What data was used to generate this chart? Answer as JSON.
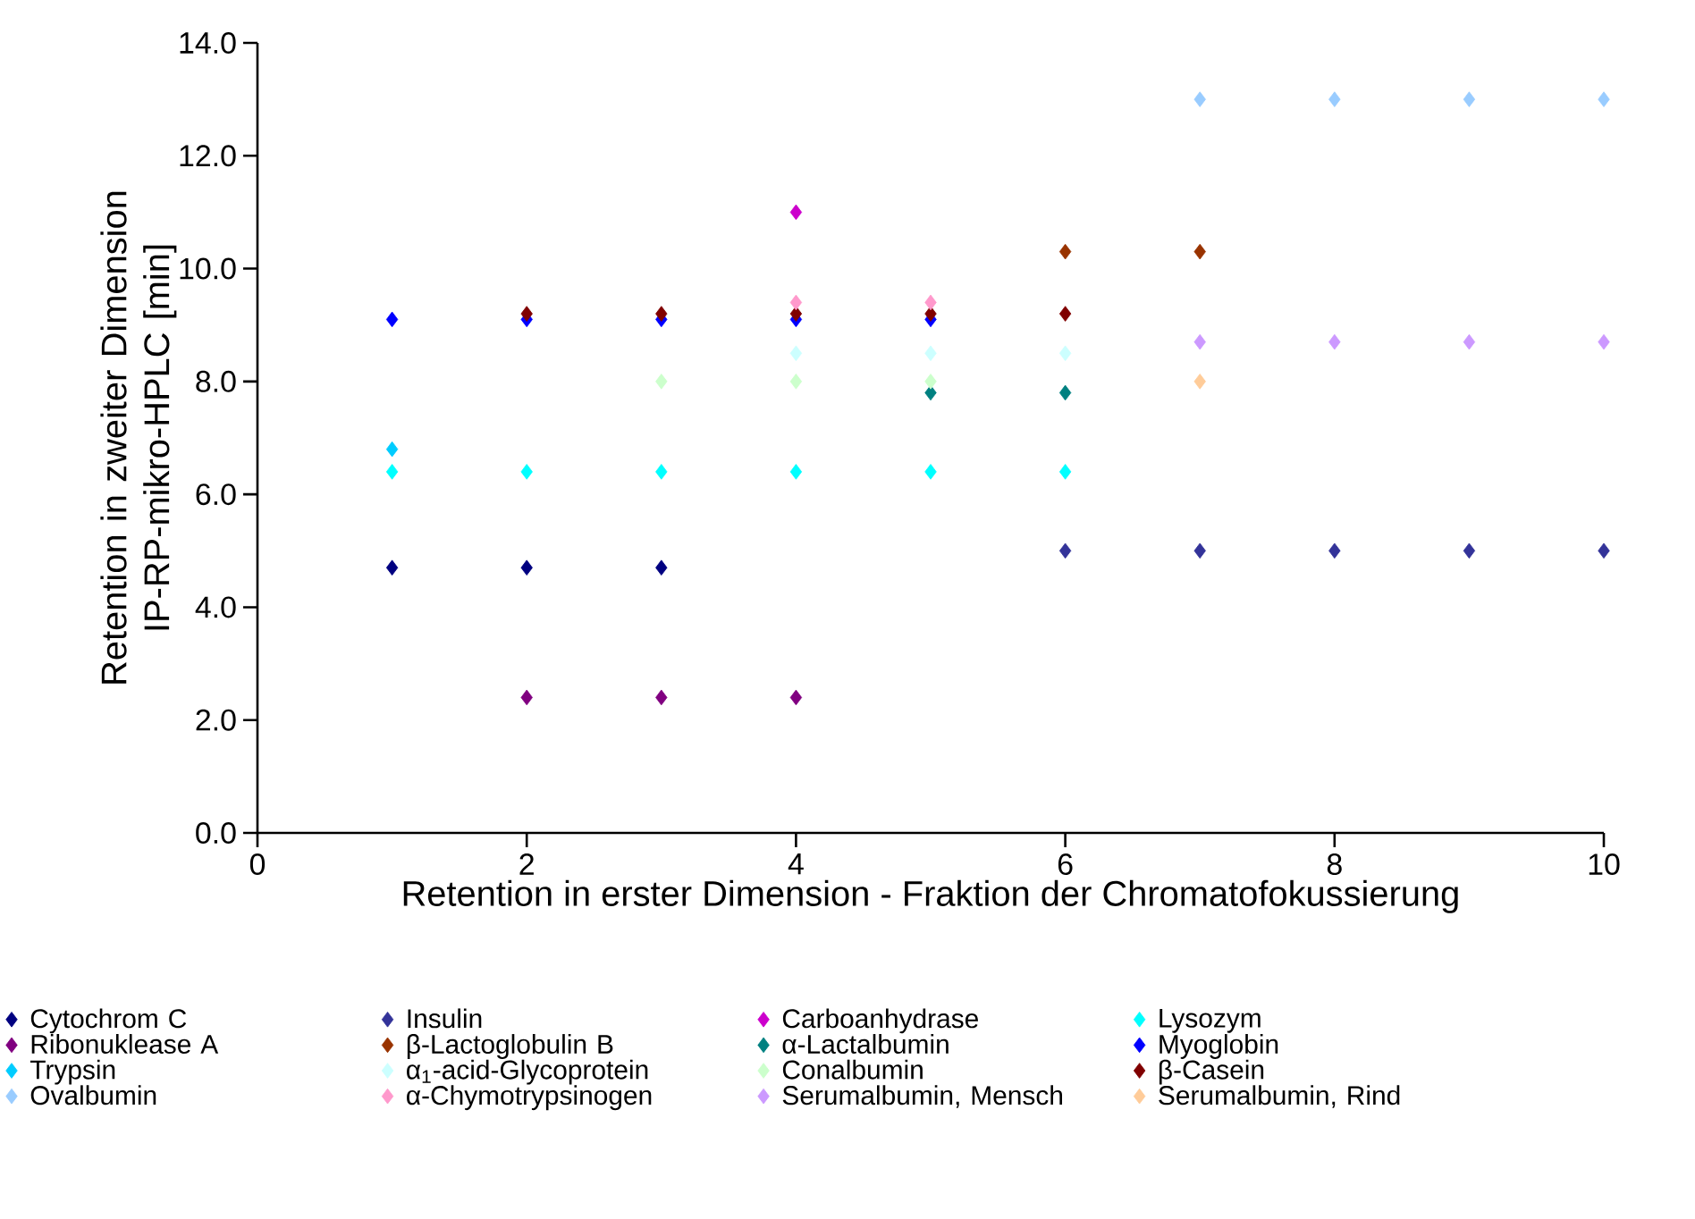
{
  "chart_data": {
    "type": "scatter",
    "xlabel": "Retention in erster Dimension - Fraktion der Chromatofokussierung",
    "ylabel": "Retention in zweiter Dimension IP-RP-mikro-HPLC [min]",
    "xlim": [
      0,
      10
    ],
    "ylim": [
      0,
      14
    ],
    "xticks": [
      0,
      2,
      4,
      6,
      8,
      10
    ],
    "yticks": [
      {
        "value": 0,
        "label": "0.0"
      },
      {
        "value": 2,
        "label": "2.0"
      },
      {
        "value": 4,
        "label": "4.0"
      },
      {
        "value": 6,
        "label": "6.0"
      },
      {
        "value": 8,
        "label": "8.0"
      },
      {
        "value": 10,
        "label": "10.0"
      },
      {
        "value": 12,
        "label": "12.0"
      },
      {
        "value": 14,
        "label": "14.0"
      }
    ],
    "marker": "diamond",
    "legend": "bottom",
    "grid": false,
    "series": [
      {
        "name": "Cytochrom C",
        "color": "#000080",
        "x": [
          1,
          2,
          3
        ],
        "values": [
          4.7,
          4.7,
          4.7
        ]
      },
      {
        "name": "Insulin",
        "color": "#333399",
        "x": [
          6,
          7,
          8,
          9,
          10
        ],
        "values": [
          5.0,
          5.0,
          5.0,
          5.0,
          5.0
        ]
      },
      {
        "name": "Carboanhydrase",
        "color": "#cc00cc",
        "x": [
          4
        ],
        "values": [
          11.0
        ]
      },
      {
        "name": "Lysozym",
        "color": "#00ffff",
        "x": [
          1,
          2,
          3,
          4,
          5,
          6
        ],
        "values": [
          6.4,
          6.4,
          6.4,
          6.4,
          6.4,
          6.4
        ]
      },
      {
        "name": "Ribonuklease A",
        "color": "#800080",
        "x": [
          2,
          3,
          4
        ],
        "values": [
          2.4,
          2.4,
          2.4
        ]
      },
      {
        "name": "β-Lactoglobulin B",
        "color": "#993300",
        "x": [
          6,
          7
        ],
        "values": [
          10.3,
          10.3
        ]
      },
      {
        "name": "α-Lactalbumin",
        "color": "#008080",
        "x": [
          5,
          6
        ],
        "values": [
          7.8,
          7.8
        ]
      },
      {
        "name": "Myoglobin",
        "color": "#0000ff",
        "x": [
          1,
          2,
          3,
          4,
          5
        ],
        "values": [
          9.1,
          9.1,
          9.1,
          9.1,
          9.1
        ]
      },
      {
        "name": "Trypsin",
        "color": "#00ccff",
        "x": [
          1
        ],
        "values": [
          6.8
        ]
      },
      {
        "name": "α$_{1}$-acid-Glycoprotein",
        "color": "#ccffff",
        "x": [
          4,
          5,
          6
        ],
        "values": [
          8.5,
          8.5,
          8.5
        ]
      },
      {
        "name": "Conalbumin",
        "color": "#ccffcc",
        "x": [
          3,
          4,
          5
        ],
        "values": [
          8.0,
          8.0,
          8.0
        ]
      },
      {
        "name": "β-Casein",
        "color": "#800000",
        "x": [
          2,
          3,
          4,
          5,
          6
        ],
        "values": [
          9.2,
          9.2,
          9.2,
          9.2,
          9.2
        ]
      },
      {
        "name": "Ovalbumin",
        "color": "#99ccff",
        "x": [
          7,
          8,
          9,
          10
        ],
        "values": [
          13.0,
          13.0,
          13.0,
          13.0
        ]
      },
      {
        "name": "α-Chymotrypsinogen",
        "color": "#ff99cc",
        "x": [
          4,
          5
        ],
        "values": [
          9.4,
          9.4
        ]
      },
      {
        "name": "Serumalbumin, Mensch",
        "color": "#cc99ff",
        "x": [
          7,
          8,
          9,
          10
        ],
        "values": [
          8.7,
          8.7,
          8.7,
          8.7
        ]
      },
      {
        "name": "Serumalbumin, Rind",
        "color": "#ffcc99",
        "x": [
          7
        ],
        "values": [
          8.0
        ]
      }
    ]
  }
}
